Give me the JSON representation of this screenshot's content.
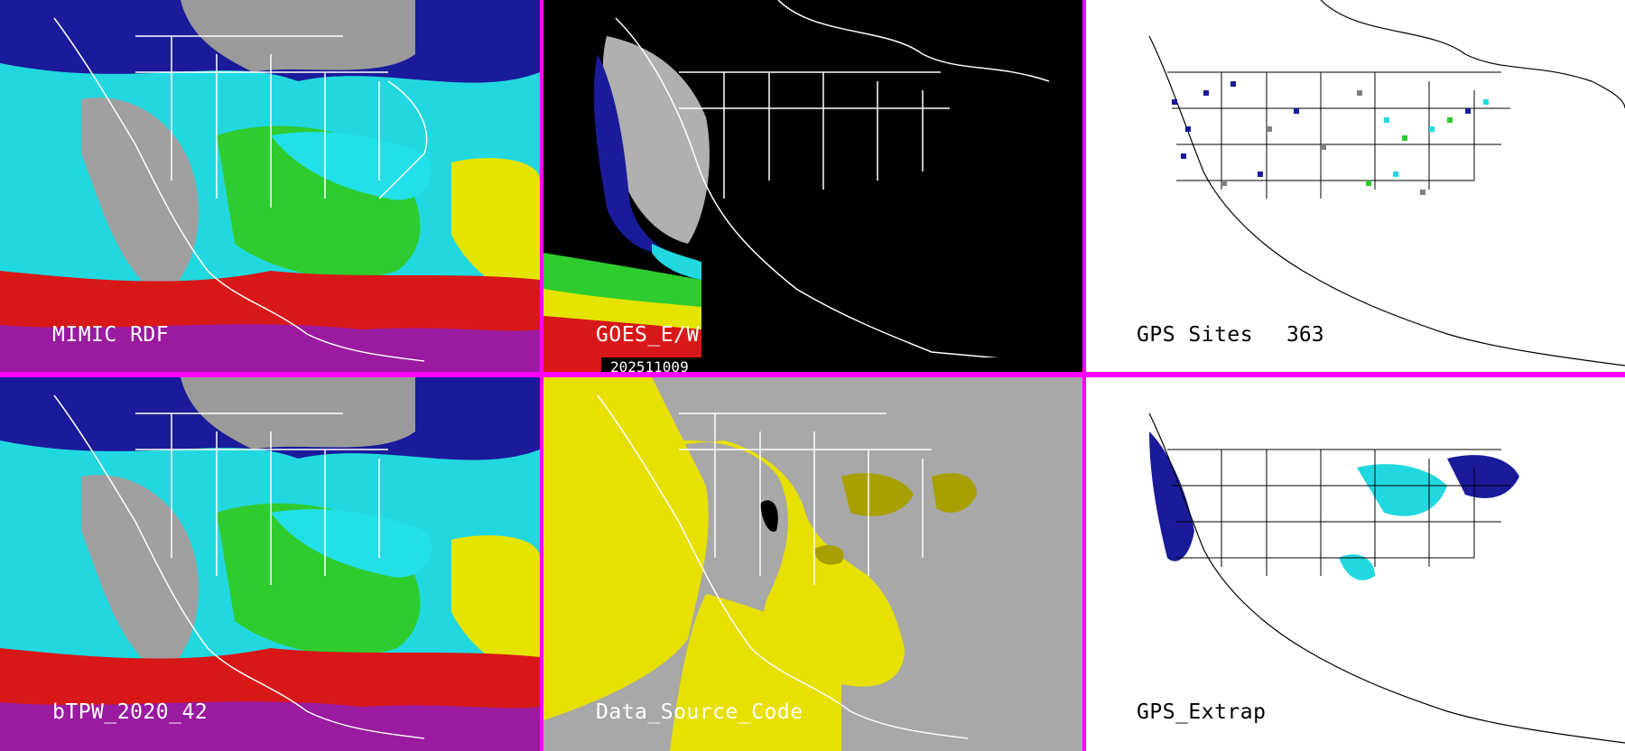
{
  "panels": [
    {
      "id": "mimic_rdf",
      "label": "MIMIC RDF"
    },
    {
      "id": "goes_ew",
      "label": "GOES_E/W",
      "date": "202511009"
    },
    {
      "id": "gps_sites",
      "label": "GPS Sites",
      "count": "363"
    },
    {
      "id": "btpw",
      "label": "bTPW_2020_42"
    },
    {
      "id": "data_source",
      "label": "Data_Source_Code"
    },
    {
      "id": "gps_extrap",
      "label": "GPS_Extrap"
    }
  ],
  "colors": {
    "divider": "#ff00ff",
    "tpw_gray": "#9a9a9a",
    "tpw_blue": "#1a1a9a",
    "tpw_cyan": "#22d8e0",
    "tpw_green": "#2fcc2f",
    "tpw_yellow": "#e4e400",
    "tpw_red": "#d81818",
    "tpw_purple": "#9a1aa0",
    "source_gray": "#a8a8a8",
    "source_yellow": "#e8e000",
    "source_olive": "#a8a000"
  }
}
